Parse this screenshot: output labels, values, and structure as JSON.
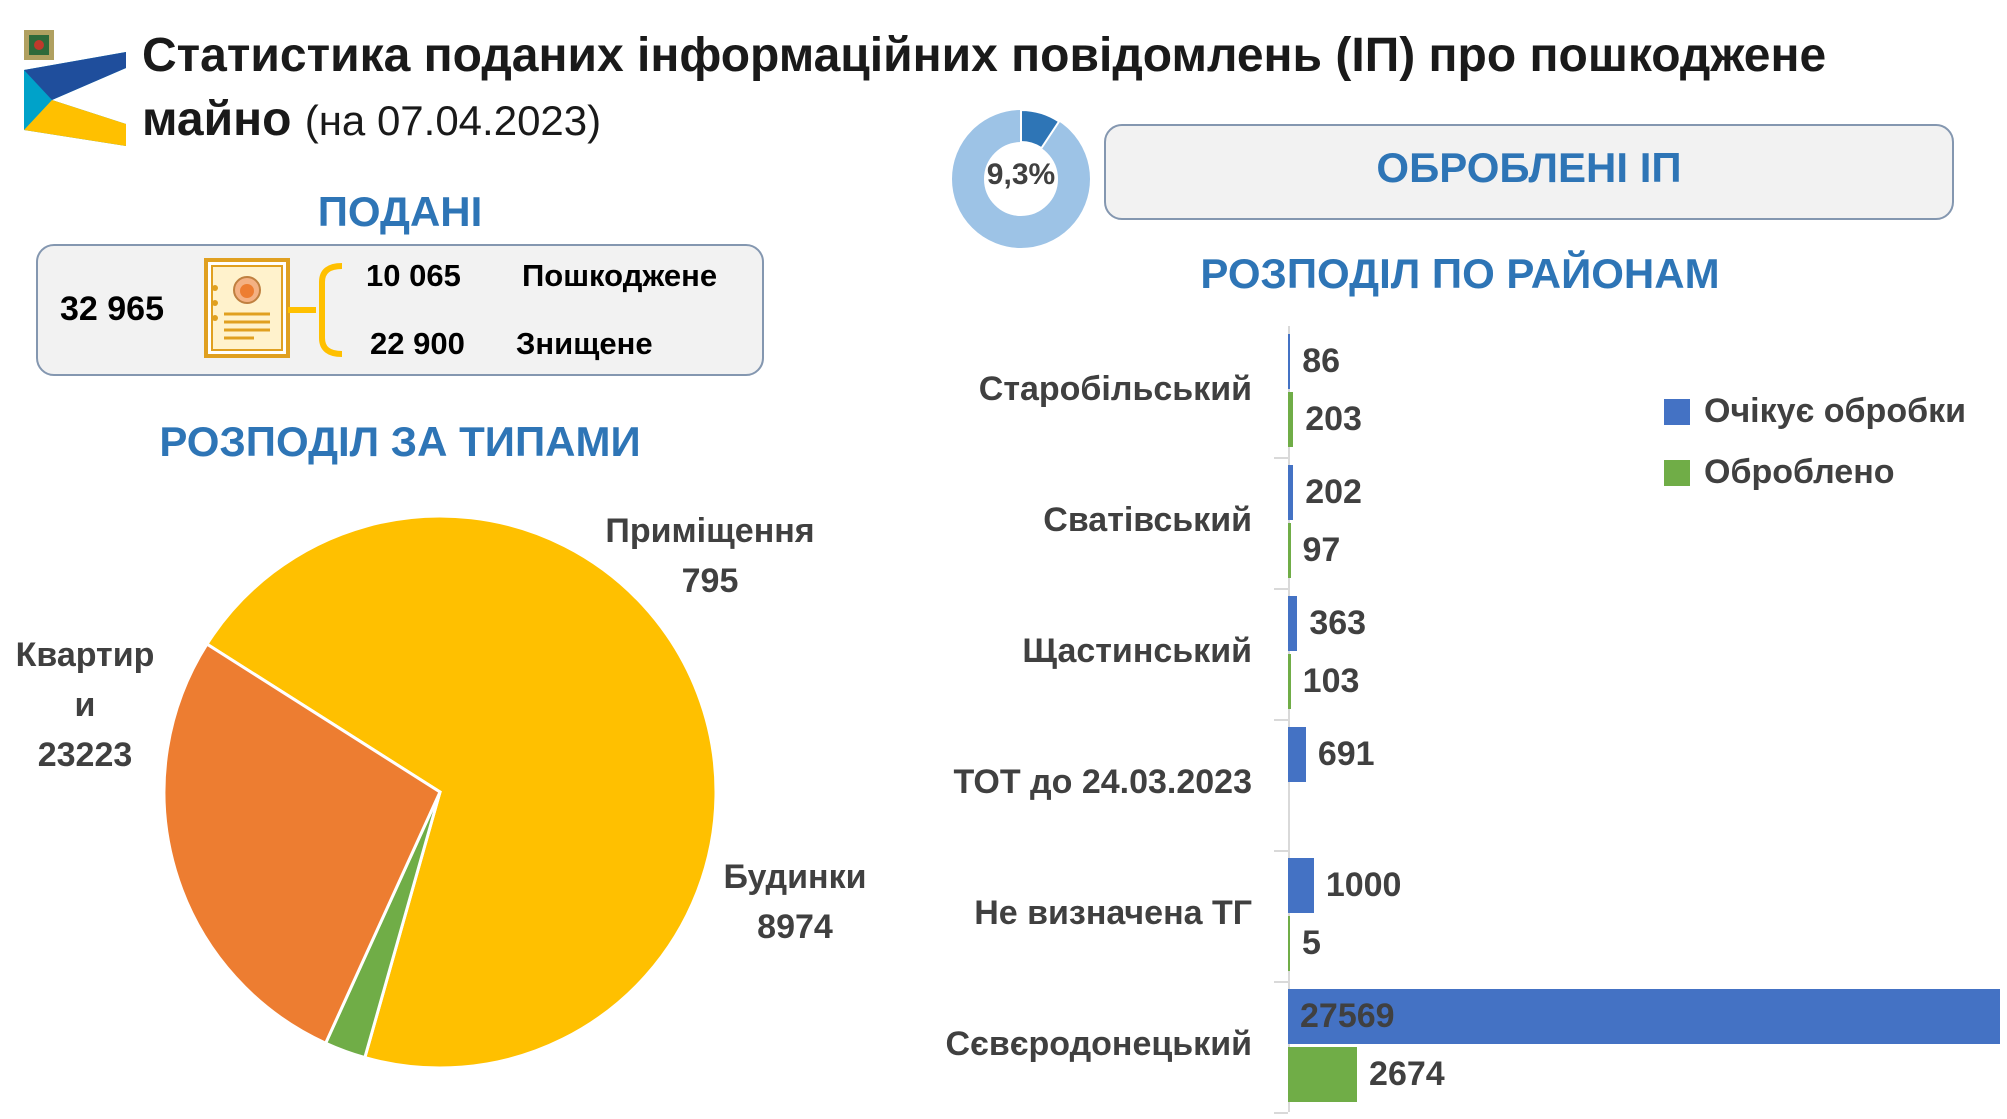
{
  "header": {
    "title_main": "Статистика поданих інформаційних повідомлень (ІП) про пошкоджене майно",
    "title_date": "(на 07.04.2023)"
  },
  "submitted": {
    "heading": "ПОДАНІ",
    "total": "32 965",
    "damaged_value": "10 065",
    "damaged_label": "Пошкоджене",
    "destroyed_value": "22 900",
    "destroyed_label": "Знищене"
  },
  "processed": {
    "percent_label": "9,3%",
    "percent": 9.3,
    "heading": "ОБРОБЛЕНІ ІП"
  },
  "chart_data": [
    {
      "type": "pie",
      "title": "РОЗПОДІЛ ЗА ТИПАМИ",
      "slices": [
        {
          "label": "Квартир\nи",
          "value": 23223,
          "color": "#ffc000"
        },
        {
          "label": "Приміщення",
          "value": 795,
          "color": "#70ad47"
        },
        {
          "label": "Будинки",
          "value": 8974,
          "color": "#ed7d31"
        }
      ]
    },
    {
      "type": "bar",
      "orientation": "horizontal",
      "title": "РОЗПОДІЛ ПО РАЙОНАМ",
      "categories": [
        "Старобільський",
        "Сватівський",
        "Щастинський",
        "ТОТ до 24.03.2023",
        "Не визначена ТГ",
        "Сєвєродонецький"
      ],
      "series": [
        {
          "name": "Очікує обробки",
          "color": "#4472c4",
          "values": [
            86,
            202,
            363,
            691,
            1000,
            27569
          ]
        },
        {
          "name": "Оброблено",
          "color": "#70ad47",
          "values": [
            203,
            97,
            103,
            null,
            5,
            2674
          ]
        }
      ],
      "legend_position": "right",
      "xlim": [
        0,
        27569
      ]
    }
  ],
  "icons": {
    "logo": "region-logo-icon",
    "document": "document-person-icon"
  }
}
